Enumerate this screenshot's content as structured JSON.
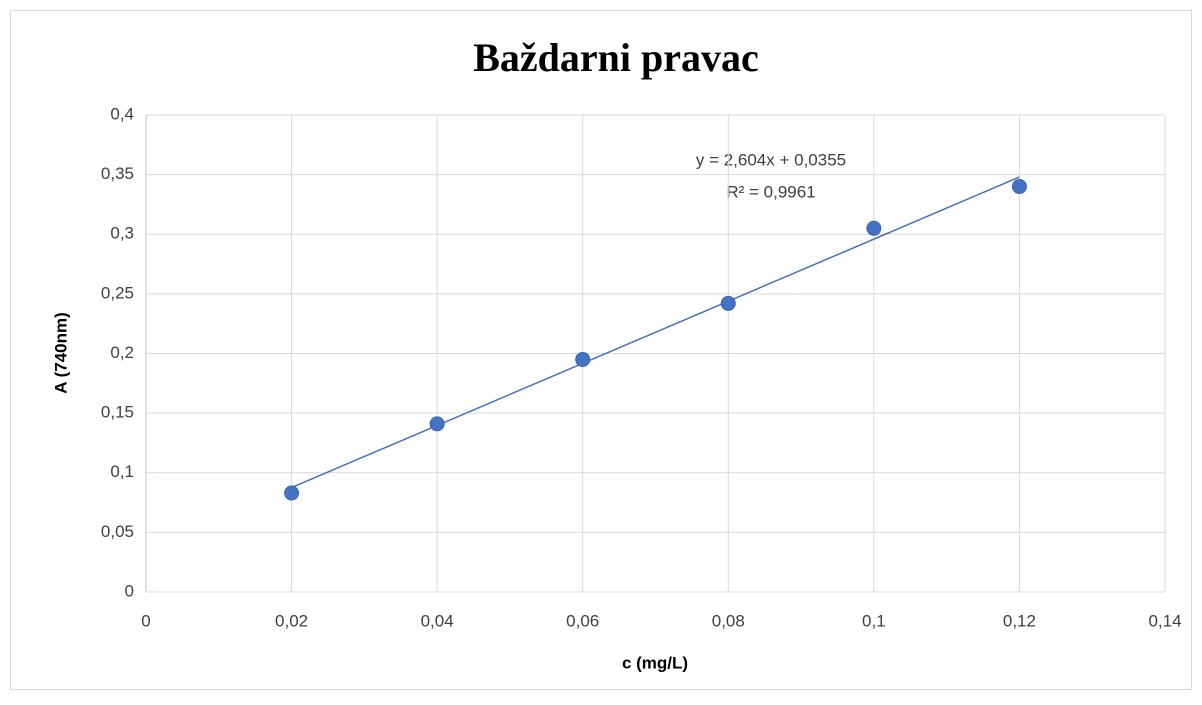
{
  "chart_data": {
    "type": "scatter",
    "title": "Baždarni pravac",
    "x_label": "c (mg/L)",
    "y_label": "A (740nm)",
    "x": [
      0.02,
      0.04,
      0.06,
      0.08,
      0.1,
      0.12
    ],
    "series": [
      {
        "name": "A (740nm)",
        "color": "#4472c4",
        "values": [
          0.083,
          0.141,
          0.195,
          0.242,
          0.305,
          0.34
        ]
      }
    ],
    "xlim": [
      0,
      0.14
    ],
    "ylim": [
      0,
      0.4
    ],
    "xticks": [
      0,
      {
        "value": 0.02,
        "label": "0,02"
      },
      {
        "value": 0.04,
        "label": "0,04"
      },
      {
        "value": 0.06,
        "label": "0,06"
      },
      {
        "value": 0.08,
        "label": "0,08"
      },
      {
        "value": 0.1,
        "label": "0,1"
      },
      {
        "value": 0.12,
        "label": "0,12"
      },
      {
        "value": 0.14,
        "label": "0,14"
      }
    ],
    "yticks": [
      0,
      {
        "value": 0.05,
        "label": "0,05"
      },
      {
        "value": 0.1,
        "label": "0,1"
      },
      {
        "value": 0.15,
        "label": "0,15"
      },
      {
        "value": 0.2,
        "label": "0,2"
      },
      {
        "value": 0.25,
        "label": "0,25"
      },
      {
        "value": 0.3,
        "label": "0,3"
      },
      {
        "value": 0.35,
        "label": "0,35"
      },
      {
        "value": 0.4,
        "label": "0,4"
      }
    ],
    "grid": true,
    "trendline": {
      "slope": 2.604,
      "intercept": 0.0355,
      "equation": "y = 2,604x + 0,0355",
      "r_squared": "R² = 0,9961"
    }
  }
}
